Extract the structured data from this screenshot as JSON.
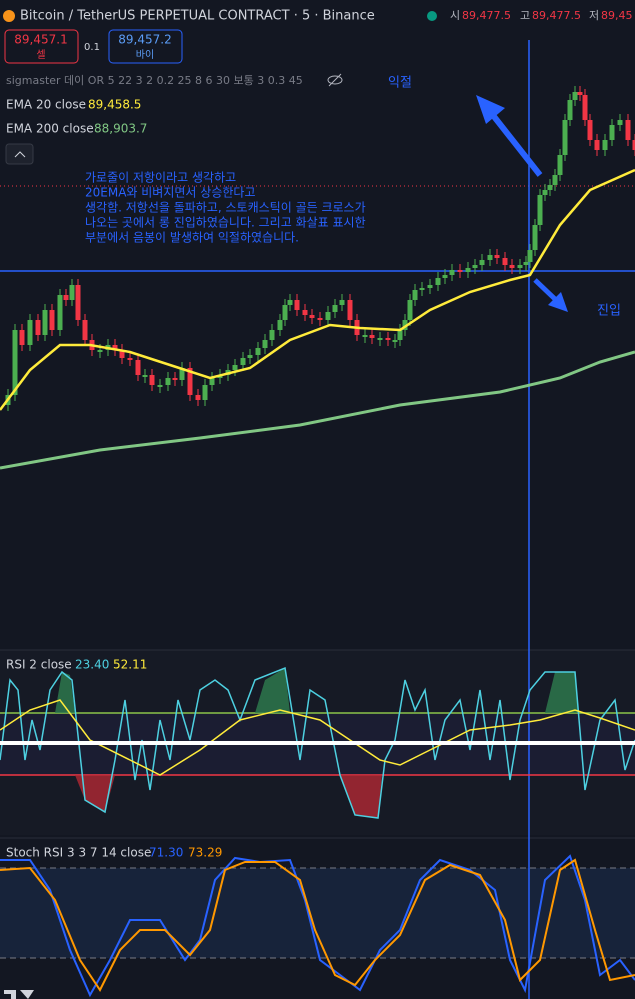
{
  "header": {
    "symbol": "Bitcoin / TetherUS PERPETUAL CONTRACT · 5 · Binance",
    "open_label": "시",
    "open": "89,477.5",
    "high_label": "고",
    "high": "89,477.5",
    "low_label": "저",
    "low": "89,45"
  },
  "trade": {
    "sell_price": "89,457.1",
    "sell_label": "셀",
    "spread": "0.1",
    "buy_price": "89,457.2",
    "buy_label": "바이"
  },
  "indicators": {
    "sigmaster": "sigmaster 데이 OR 5 22 3 2 0.2 25 8 6 30 보통 3 0.3 45",
    "ema20_label": "EMA 20 close",
    "ema20_value": "89,458.5",
    "ema200_label": "EMA 200 close",
    "ema200_value": "88,903.7"
  },
  "annotations": {
    "take_profit": "익절",
    "entry": "진입",
    "note": [
      "가로줄이 저항이라고 생각하고",
      "20EMA와 비벼지면서 상승한다고",
      "생각함. 저항선을 돌파하고, 스토캐스틱이 골든 크로스가",
      "나오는 곳에서 롱 진입하였습니다. 그리고 화살표 표시한",
      "부분에서 음봉이 발생하여 익절하였습니다."
    ]
  },
  "rsi": {
    "label": "RSI 2 close",
    "value1": "23.40",
    "value2": "52.11"
  },
  "stoch": {
    "label": "Stoch RSI 3 3 7 14 close",
    "k": "71.30",
    "d": "73.29"
  }
}
